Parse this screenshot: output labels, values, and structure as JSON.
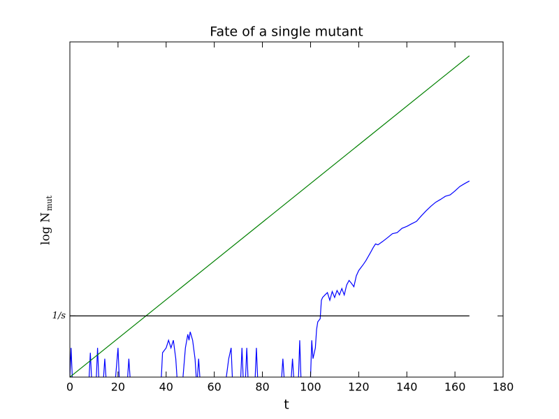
{
  "chart_data": {
    "type": "line",
    "title": "Fate of a single mutant",
    "xlabel": "t",
    "ylabel": "log N",
    "ylabel_sub": "mut",
    "xlim": [
      0,
      180
    ],
    "xticks": [
      0,
      20,
      40,
      60,
      80,
      100,
      120,
      140,
      160,
      180
    ],
    "ylim": [
      1,
      300000
    ],
    "yscale": "log",
    "yticks": [
      {
        "value": 10,
        "label": "1/s"
      }
    ],
    "series": [
      {
        "color": "#0000ff",
        "x": [
          0,
          0.5,
          1,
          4,
          8,
          8.5,
          9,
          10,
          11,
          11.5,
          12,
          13,
          14,
          14.5,
          15,
          17,
          19,
          20,
          20.5,
          22,
          24,
          24.5,
          25,
          30,
          38,
          38.5,
          40,
          41,
          42,
          43,
          44,
          44.5,
          46,
          47,
          48,
          49,
          49.5,
          50,
          51,
          52,
          52.5,
          52.8,
          53,
          53.5,
          54,
          60,
          65,
          66,
          67,
          67.5,
          70,
          71,
          71.5,
          72,
          72.5,
          73,
          73.5,
          74,
          75,
          77,
          77.5,
          78,
          85,
          88,
          88.5,
          89,
          90,
          92,
          92.5,
          93,
          94,
          95,
          95.5,
          96,
          98,
          100,
          100.5,
          101,
          102,
          102.5,
          103,
          104,
          104.5,
          105,
          106,
          107,
          108,
          109,
          110,
          111,
          112,
          113,
          114,
          115,
          116,
          117,
          118,
          119,
          120,
          121,
          122,
          123,
          125,
          126,
          127,
          128,
          130,
          132,
          134,
          136,
          138,
          140,
          142,
          144,
          146,
          148,
          150,
          152,
          154,
          156,
          158,
          160,
          162,
          164,
          166
        ],
        "values": [
          1,
          3,
          1,
          null,
          1,
          2.5,
          1,
          null,
          1,
          3,
          1,
          null,
          1,
          2,
          1,
          null,
          1,
          3,
          1,
          null,
          1,
          2,
          1,
          null,
          1,
          2.5,
          3,
          4,
          3,
          4,
          2,
          1,
          null,
          1,
          3,
          5,
          4,
          5.5,
          4,
          2,
          1,
          null,
          1,
          2,
          1,
          null,
          1,
          2,
          3,
          1,
          null,
          1,
          3,
          1,
          null,
          1,
          3,
          1,
          null,
          1,
          3,
          1,
          null,
          1,
          2,
          1,
          null,
          1,
          2,
          1,
          null,
          1,
          4,
          1,
          null,
          1,
          4,
          2,
          3,
          6,
          8,
          9,
          18,
          20,
          22,
          24,
          18,
          25,
          20,
          26,
          22,
          28,
          22,
          32,
          38,
          34,
          30,
          45,
          55,
          62,
          70,
          80,
          110,
          130,
          150,
          145,
          165,
          190,
          220,
          230,
          270,
          290,
          320,
          350,
          430,
          520,
          620,
          720,
          800,
          900,
          950,
          1100,
          1300,
          1450,
          1600
        ]
      },
      {
        "color": "#008000",
        "x": [
          0,
          166
        ],
        "values": [
          1,
          178000
        ]
      },
      {
        "color": "#000000",
        "x": [
          0,
          166
        ],
        "values": [
          10,
          10
        ]
      }
    ]
  }
}
